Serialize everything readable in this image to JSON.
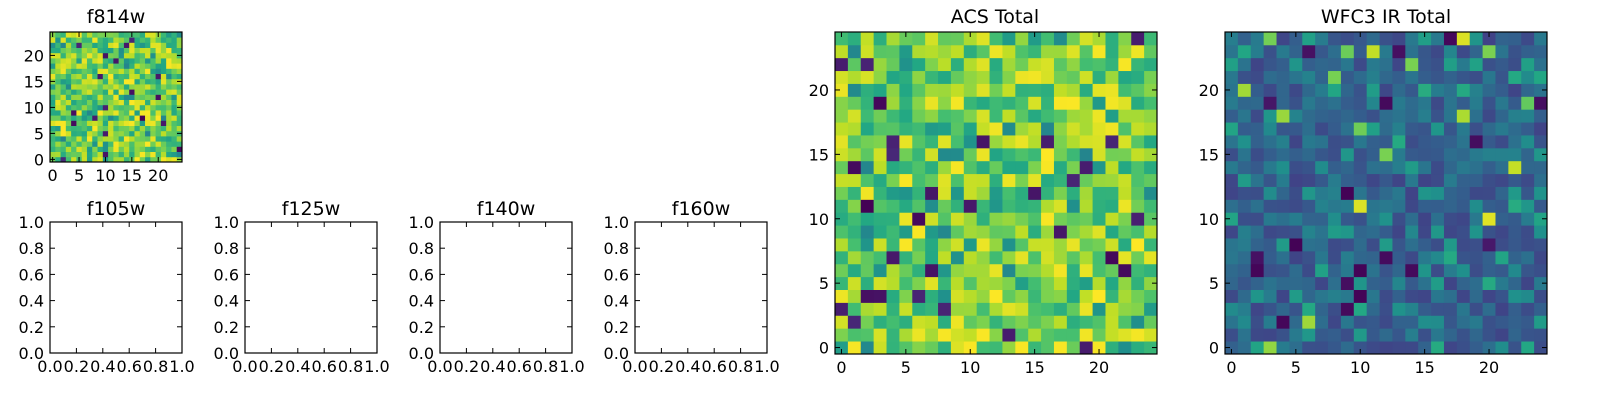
{
  "chart_data": [
    {
      "id": "f814w",
      "type": "heatmap",
      "title": "f814w",
      "xlabel": "",
      "ylabel": "",
      "xlim": [
        -0.5,
        24.5
      ],
      "ylim": [
        -0.5,
        24.5
      ],
      "xticks": [
        0,
        5,
        10,
        15,
        20
      ],
      "yticks": [
        0,
        5,
        10,
        15,
        20
      ],
      "grid": false,
      "colormap": "viridis",
      "grid_size": [
        25,
        25
      ],
      "value_range": [
        0,
        1
      ],
      "seed": 814,
      "dist": "acs"
    },
    {
      "id": "f105w",
      "type": "empty",
      "title": "f105w",
      "xlim": [
        0,
        1
      ],
      "ylim": [
        0,
        1
      ],
      "xticks": [
        0.0,
        0.2,
        0.4,
        0.6,
        0.8,
        1.0
      ],
      "yticks": [
        0.0,
        0.2,
        0.4,
        0.6,
        0.8,
        1.0
      ],
      "xticklabels": [
        "0.0",
        "0.2",
        "0.4",
        "0.6",
        "0.8",
        "1.0"
      ],
      "yticklabels": [
        "0.0",
        "0.2",
        "0.4",
        "0.6",
        "0.8",
        "1.0"
      ]
    },
    {
      "id": "f125w",
      "type": "empty",
      "title": "f125w",
      "xlim": [
        0,
        1
      ],
      "ylim": [
        0,
        1
      ],
      "xticks": [
        0.0,
        0.2,
        0.4,
        0.6,
        0.8,
        1.0
      ],
      "yticks": [
        0.0,
        0.2,
        0.4,
        0.6,
        0.8,
        1.0
      ],
      "xticklabels": [
        "0.0",
        "0.2",
        "0.4",
        "0.6",
        "0.8",
        "1.0"
      ],
      "yticklabels": [
        "0.0",
        "0.2",
        "0.4",
        "0.6",
        "0.8",
        "1.0"
      ]
    },
    {
      "id": "f140w",
      "type": "empty",
      "title": "f140w",
      "xlim": [
        0,
        1
      ],
      "ylim": [
        0,
        1
      ],
      "xticks": [
        0.0,
        0.2,
        0.4,
        0.6,
        0.8,
        1.0
      ],
      "yticks": [
        0.0,
        0.2,
        0.4,
        0.6,
        0.8,
        1.0
      ],
      "xticklabels": [
        "0.0",
        "0.2",
        "0.4",
        "0.6",
        "0.8",
        "1.0"
      ],
      "yticklabels": [
        "0.0",
        "0.2",
        "0.4",
        "0.6",
        "0.8",
        "1.0"
      ]
    },
    {
      "id": "f160w",
      "type": "empty",
      "title": "f160w",
      "xlim": [
        0,
        1
      ],
      "ylim": [
        0,
        1
      ],
      "xticks": [
        0.0,
        0.2,
        0.4,
        0.6,
        0.8,
        1.0
      ],
      "yticks": [
        0.0,
        0.2,
        0.4,
        0.6,
        0.8,
        1.0
      ],
      "xticklabels": [
        "0.0",
        "0.2",
        "0.4",
        "0.6",
        "0.8",
        "1.0"
      ],
      "yticklabels": [
        "0.0",
        "0.2",
        "0.4",
        "0.6",
        "0.8",
        "1.0"
      ]
    },
    {
      "id": "acs-total",
      "type": "heatmap",
      "title": "ACS Total",
      "xlabel": "",
      "ylabel": "",
      "xlim": [
        -0.5,
        24.5
      ],
      "ylim": [
        -0.5,
        24.5
      ],
      "xticks": [
        0,
        5,
        10,
        15,
        20
      ],
      "yticks": [
        0,
        5,
        10,
        15,
        20
      ],
      "grid": false,
      "colormap": "viridis",
      "grid_size": [
        25,
        25
      ],
      "value_range": [
        0,
        1
      ],
      "seed": 1234,
      "dist": "acs"
    },
    {
      "id": "wfc3-ir-total",
      "type": "heatmap",
      "title": "WFC3 IR Total",
      "xlabel": "",
      "ylabel": "",
      "xlim": [
        -0.5,
        24.5
      ],
      "ylim": [
        -0.5,
        24.5
      ],
      "xticks": [
        0,
        5,
        10,
        15,
        20
      ],
      "yticks": [
        0,
        5,
        10,
        15,
        20
      ],
      "grid": false,
      "colormap": "viridis",
      "grid_size": [
        25,
        25
      ],
      "value_range": [
        0,
        1
      ],
      "seed": 3160,
      "dist": "ir"
    }
  ]
}
